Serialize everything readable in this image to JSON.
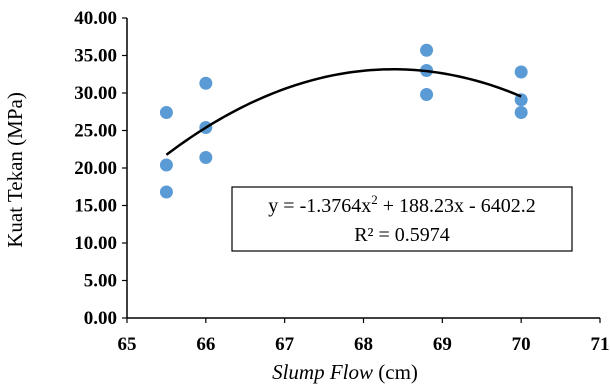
{
  "chart_data": {
    "type": "scatter",
    "title": "",
    "xlabel": {
      "italic": "Slump Flow",
      "unit": " (cm)"
    },
    "ylabel": "Kuat Tekan (MPa)",
    "xlim": [
      65,
      71
    ],
    "ylim": [
      0,
      40
    ],
    "xticks": [
      "65",
      "66",
      "67",
      "68",
      "69",
      "70",
      "71"
    ],
    "yticks": [
      "0.00",
      "5.00",
      "10.00",
      "15.00",
      "20.00",
      "25.00",
      "30.00",
      "35.00",
      "40.00"
    ],
    "grid": false,
    "marker_color": "#5b9bd5",
    "trendline_color": "#000000",
    "points": [
      {
        "x": 65.5,
        "y": 27.4
      },
      {
        "x": 65.5,
        "y": 20.4
      },
      {
        "x": 65.5,
        "y": 16.8
      },
      {
        "x": 66.0,
        "y": 31.3
      },
      {
        "x": 66.0,
        "y": 25.4
      },
      {
        "x": 66.0,
        "y": 21.4
      },
      {
        "x": 68.8,
        "y": 35.7
      },
      {
        "x": 68.8,
        "y": 33.0
      },
      {
        "x": 68.8,
        "y": 29.8
      },
      {
        "x": 70.0,
        "y": 32.8
      },
      {
        "x": 70.0,
        "y": 29.1
      },
      {
        "x": 70.0,
        "y": 27.4
      }
    ],
    "trendline": {
      "type": "polynomial",
      "coefficients": [
        -1.3764,
        188.23,
        -6402.2
      ],
      "x_range": [
        65.5,
        70.0
      ]
    },
    "equation": {
      "line1_prefix": "y = -1.3764x",
      "line1_sup": "2",
      "line1_suffix": " + 188.23x - 6402.2",
      "line2": "R² = 0.5974"
    }
  }
}
